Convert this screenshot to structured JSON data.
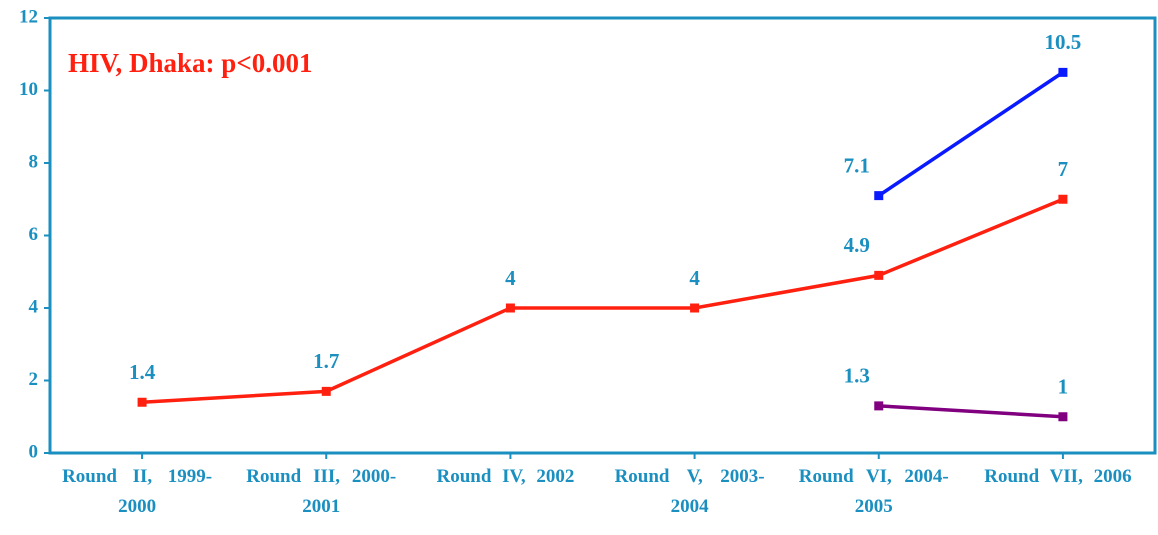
{
  "chart_data": {
    "type": "line",
    "annotation": "HIV,  Dhaka: p<0.001",
    "categories": [
      "Round II, 1999-2000",
      "Round III, 2000-2001",
      "Round IV, 2002",
      "Round V, 2003-2004",
      "Round VI, 2004-2005",
      "Round VII, 2006"
    ],
    "series": [
      {
        "color": "#ff2010",
        "values": [
          1.4,
          1.7,
          4,
          4,
          4.9,
          7
        ]
      },
      {
        "color": "#0a1aff",
        "values": [
          null,
          null,
          null,
          null,
          7.1,
          10.5
        ]
      },
      {
        "color": "#800080",
        "values": [
          null,
          null,
          null,
          null,
          1.3,
          1
        ]
      }
    ],
    "ylim": [
      0,
      12
    ],
    "yticks": [
      0,
      2,
      4,
      6,
      8,
      10,
      12
    ],
    "axis_color": "#1a8fc0",
    "annotation_color": "#ff2010"
  }
}
